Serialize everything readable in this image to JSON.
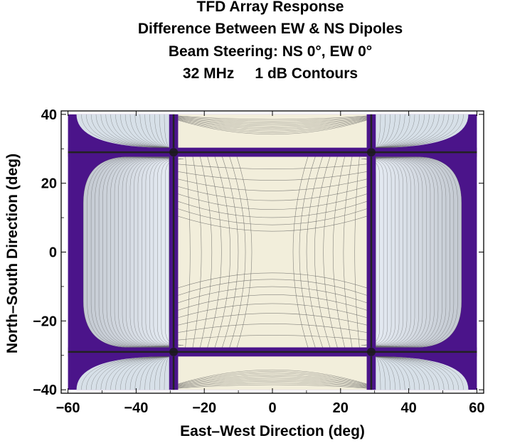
{
  "chart_data": {
    "type": "contour",
    "title_lines": [
      "TFD Array Response",
      "Difference Between EW & NS Dipoles",
      "Beam Steering: NS 0°, EW 0°",
      "32 MHz     1 dB Contours"
    ],
    "xlabel": "East–West Direction (deg)",
    "ylabel": "North–South Direction (deg)",
    "xlim": [
      -62,
      62
    ],
    "ylim": [
      -41,
      41
    ],
    "xticks": [
      -60,
      -40,
      -20,
      0,
      20,
      40,
      60
    ],
    "yticks": [
      -40,
      -20,
      0,
      20,
      40
    ],
    "xtick_labels": [
      "−60",
      "−40",
      "−20",
      "0",
      "20",
      "40",
      "60"
    ],
    "ytick_labels": [
      "−40",
      "−20",
      "0",
      "20",
      "40"
    ],
    "contour_interval_db": 1,
    "grating_nulls_deg": {
      "x": [
        -29,
        29
      ],
      "y": [
        -29,
        29
      ]
    },
    "data_extent": {
      "x": [
        -60,
        60
      ],
      "y": [
        -40,
        40
      ]
    },
    "colors": {
      "background_region": "#4b148a",
      "center_fill": "#f2eedb",
      "outer_fill": "#c9d7e5",
      "contour_line": "#555555",
      "null_line": "#222222"
    }
  }
}
